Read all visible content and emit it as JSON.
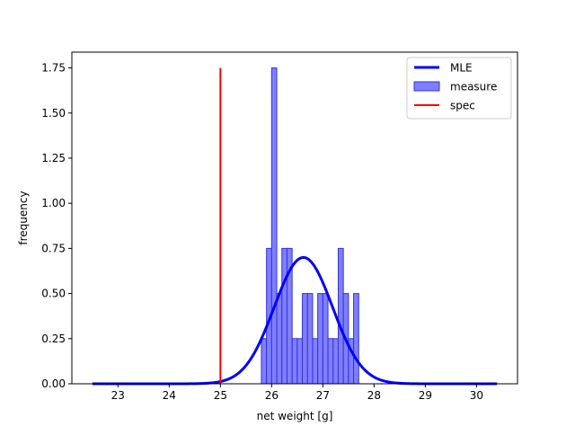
{
  "chart_data": {
    "type": "histogram",
    "xlabel": "net weight [g]",
    "ylabel": "frequency",
    "xlim": [
      22.1,
      30.8
    ],
    "ylim": [
      0,
      1.8375
    ],
    "xticks": [
      "23",
      "24",
      "25",
      "26",
      "27",
      "28",
      "29",
      "30"
    ],
    "yticks": [
      "0.00",
      "0.25",
      "0.50",
      "0.75",
      "1.00",
      "1.25",
      "1.50",
      "1.75"
    ],
    "grid": false,
    "legend_position": "top-right",
    "legend": [
      {
        "label": "MLE",
        "kind": "line"
      },
      {
        "label": "measure",
        "kind": "patch"
      },
      {
        "label": "spec",
        "kind": "line"
      }
    ],
    "colors": {
      "mle": "#0000ff",
      "measure_fill": "#7f7fff",
      "measure_edge": "#3232e6",
      "spec": "#ff0000"
    },
    "histogram": {
      "name": "measure",
      "bin_width": 0.1,
      "bins": [
        {
          "x0": 25.8,
          "x1": 25.9,
          "value": 0.25
        },
        {
          "x0": 25.9,
          "x1": 26.0,
          "value": 0.75
        },
        {
          "x0": 26.0,
          "x1": 26.1,
          "value": 1.75
        },
        {
          "x0": 26.1,
          "x1": 26.2,
          "value": 0.5
        },
        {
          "x0": 26.2,
          "x1": 26.3,
          "value": 0.75
        },
        {
          "x0": 26.3,
          "x1": 26.4,
          "value": 0.75
        },
        {
          "x0": 26.4,
          "x1": 26.5,
          "value": 0.25
        },
        {
          "x0": 26.5,
          "x1": 26.6,
          "value": 0.25
        },
        {
          "x0": 26.6,
          "x1": 26.7,
          "value": 0.5
        },
        {
          "x0": 26.7,
          "x1": 26.8,
          "value": 0.5
        },
        {
          "x0": 26.8,
          "x1": 26.9,
          "value": 0.25
        },
        {
          "x0": 26.9,
          "x1": 27.0,
          "value": 0.5
        },
        {
          "x0": 27.0,
          "x1": 27.1,
          "value": 0.5
        },
        {
          "x0": 27.1,
          "x1": 27.2,
          "value": 0.25
        },
        {
          "x0": 27.2,
          "x1": 27.3,
          "value": 0.25
        },
        {
          "x0": 27.3,
          "x1": 27.4,
          "value": 0.75
        },
        {
          "x0": 27.4,
          "x1": 27.5,
          "value": 0.5
        },
        {
          "x0": 27.5,
          "x1": 27.6,
          "value": 0.25
        },
        {
          "x0": 27.6,
          "x1": 27.7,
          "value": 0.5
        }
      ]
    },
    "mle_curve": {
      "name": "MLE",
      "distribution": "normal",
      "mean": 26.62,
      "sd": 0.57,
      "x_range": [
        22.5,
        30.4
      ]
    },
    "spec_line": {
      "name": "spec",
      "x": 25.0,
      "y_range": [
        0,
        1.75
      ]
    }
  }
}
